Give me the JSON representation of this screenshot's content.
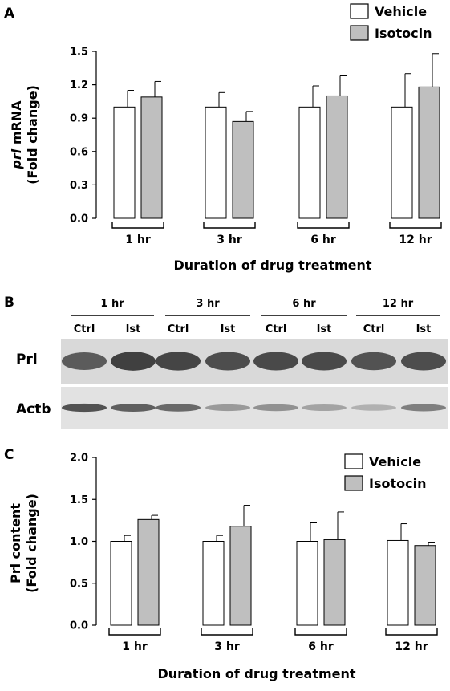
{
  "panels": {
    "a": {
      "label": "A"
    },
    "b": {
      "label": "B",
      "groups": [
        "1 hr",
        "3 hr",
        "6 hr",
        "12 hr"
      ],
      "lanes": [
        "Ctrl",
        "Ist",
        "Ctrl",
        "Ist",
        "Ctrl",
        "Ist",
        "Ctrl",
        "Ist"
      ],
      "rows": [
        {
          "label": "Prl",
          "intensity": [
            0.8,
            0.95,
            0.92,
            0.88,
            0.9,
            0.9,
            0.85,
            0.88
          ]
        },
        {
          "label": "Actb",
          "intensity": [
            0.85,
            0.78,
            0.72,
            0.45,
            0.5,
            0.4,
            0.32,
            0.6
          ]
        }
      ]
    },
    "c": {
      "label": "C"
    }
  },
  "chart_data": [
    {
      "type": "bar",
      "panel": "A",
      "categories": [
        "1 hr",
        "3 hr",
        "6 hr",
        "12 hr"
      ],
      "series": [
        {
          "name": "Vehicle",
          "values": [
            1.0,
            1.0,
            1.0,
            1.0
          ],
          "errors": [
            0.15,
            0.13,
            0.19,
            0.3
          ],
          "color": "#ffffff"
        },
        {
          "name": "Isotocin",
          "values": [
            1.09,
            0.87,
            1.1,
            1.18
          ],
          "errors": [
            0.14,
            0.09,
            0.18,
            0.3
          ],
          "color": "#bfbfbf"
        }
      ],
      "ylabel_italic": "prl",
      "ylabel_rest": " mRNA",
      "ylabel2": "(Fold change)",
      "xlabel": "Duration of drug treatment",
      "ylim": [
        0.0,
        1.5
      ],
      "yticks": [
        "0.0",
        "0.3",
        "0.6",
        "0.9",
        "1.2",
        "1.5"
      ],
      "legend": "top-right"
    },
    {
      "type": "bar",
      "panel": "C",
      "categories": [
        "1 hr",
        "3 hr",
        "6 hr",
        "12 hr"
      ],
      "series": [
        {
          "name": "Vehicle",
          "values": [
            1.0,
            1.0,
            1.0,
            1.01
          ],
          "errors": [
            0.07,
            0.07,
            0.22,
            0.2
          ],
          "color": "#ffffff"
        },
        {
          "name": "Isotocin",
          "values": [
            1.26,
            1.18,
            1.02,
            0.95
          ],
          "errors": [
            0.05,
            0.25,
            0.33,
            0.04
          ],
          "color": "#bfbfbf"
        }
      ],
      "ylabel": "Prl content",
      "ylabel2": "(Fold change)",
      "xlabel": "Duration of drug treatment",
      "ylim": [
        0.0,
        2.0
      ],
      "yticks": [
        "0.0",
        "0.5",
        "1.0",
        "1.5",
        "2.0"
      ],
      "legend": "top-right"
    }
  ]
}
